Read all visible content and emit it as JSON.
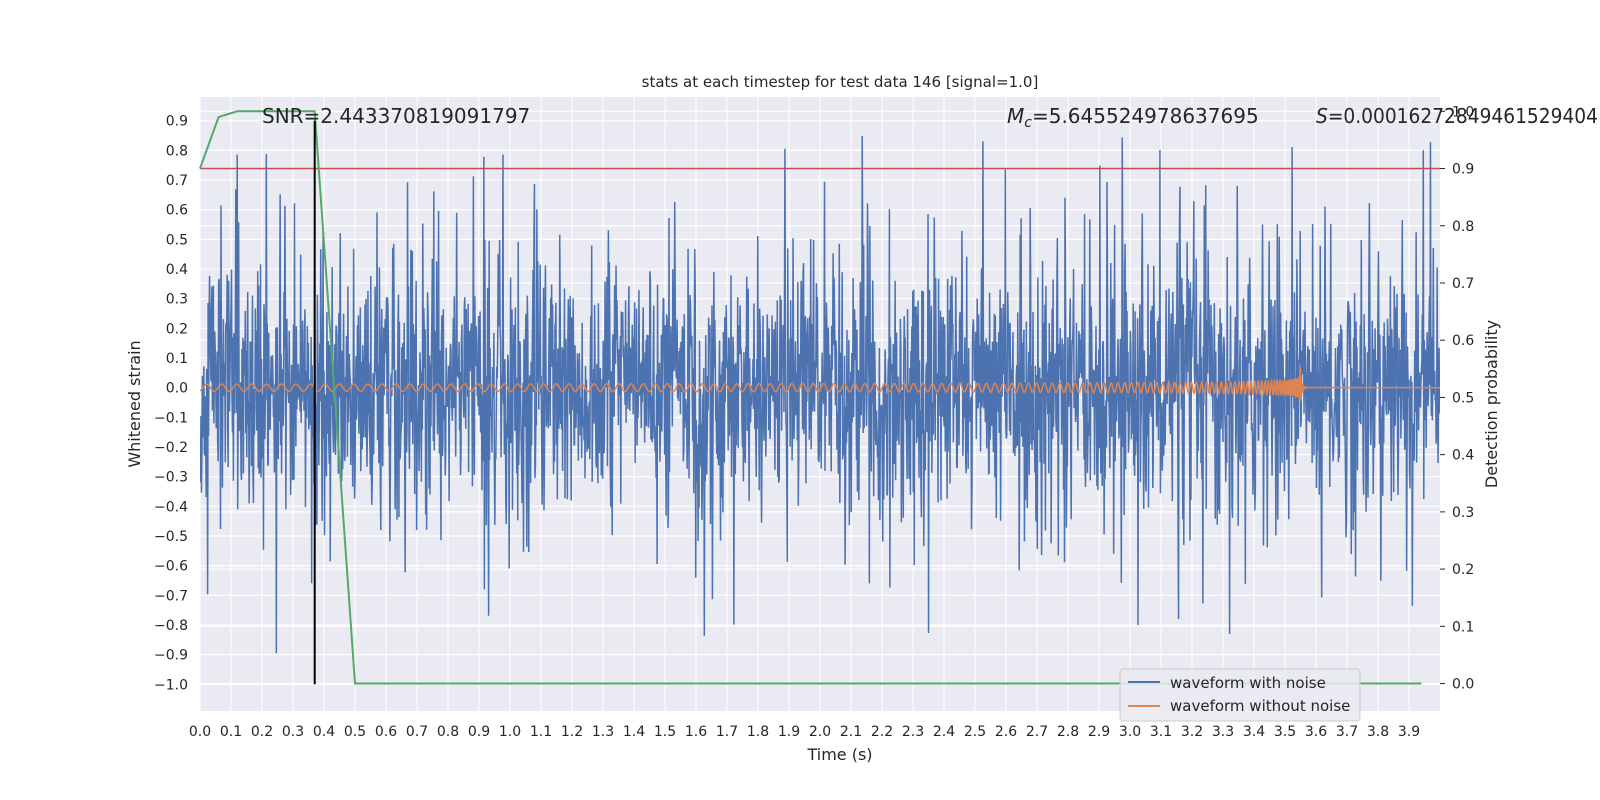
{
  "chart_data": {
    "type": "line",
    "title": "stats at each timestep for test data 146 [signal=1.0]",
    "xlabel": "Time (s)",
    "ylabel": "Whitened strain",
    "ylabel_right": "Detection probability",
    "xlim": [
      0.0,
      4.0
    ],
    "ylim": [
      -1.09,
      0.98
    ],
    "ylim_right": [
      -0.048,
      1.025
    ],
    "x_ticks": [
      "0.0",
      "0.1",
      "0.2",
      "0.3",
      "0.4",
      "0.5",
      "0.6",
      "0.7",
      "0.8",
      "0.9",
      "1.0",
      "1.1",
      "1.2",
      "1.3",
      "1.4",
      "1.5",
      "1.6",
      "1.7",
      "1.8",
      "1.9",
      "2.0",
      "2.1",
      "2.2",
      "2.3",
      "2.4",
      "2.5",
      "2.6",
      "2.7",
      "2.8",
      "2.9",
      "3.0",
      "3.1",
      "3.2",
      "3.3",
      "3.4",
      "3.5",
      "3.6",
      "3.7",
      "3.8",
      "3.9"
    ],
    "y_ticks": [
      "0.9",
      "0.8",
      "0.7",
      "0.6",
      "0.5",
      "0.4",
      "0.3",
      "0.2",
      "0.1",
      "0.0",
      "−0.1",
      "−0.2",
      "−0.3",
      "−0.4",
      "−0.5",
      "−0.6",
      "−0.7",
      "−0.8",
      "−0.9",
      "−1.0"
    ],
    "y_ticks_right": [
      "1.0",
      "0.9",
      "0.8",
      "0.7",
      "0.6",
      "0.5",
      "0.4",
      "0.3",
      "0.2",
      "0.1",
      "0.0"
    ],
    "annotations": {
      "snr": "SNR=2.443370819091797",
      "mc_symbol": "M",
      "mc_sub": "c",
      "mc_value": "=5.645524978637695",
      "s_symbol": "S",
      "s_value": "=0.00016272849461529404"
    },
    "legend": {
      "position": "lower-right",
      "entries": [
        "waveform with noise",
        "waveform without noise"
      ]
    },
    "threshold": {
      "axis": "right",
      "value": 0.9
    },
    "marker_line": {
      "x": 0.37,
      "y_from": -1.0,
      "y_to": 0.9
    },
    "series": [
      {
        "name": "waveform with noise",
        "axis": "left",
        "style": "noise",
        "x_range": [
          0.0,
          4.0
        ],
        "amplitude_rms": 0.22,
        "peak_max": 0.9,
        "peak_min": -0.98
      },
      {
        "name": "waveform without noise",
        "axis": "left",
        "style": "chirp",
        "x_range": [
          0.0,
          3.55
        ],
        "start_amplitude": 0.012,
        "end_amplitude": 0.07,
        "ringdown_end": 3.57
      },
      {
        "name": "detection probability",
        "axis": "right",
        "style": "line",
        "x": [
          0.0,
          0.06,
          0.12,
          0.2,
          0.3,
          0.37,
          0.5,
          1.0,
          2.0,
          3.0,
          3.94
        ],
        "y": [
          0.9,
          0.99,
          1.0,
          1.0,
          1.0,
          1.0,
          0.0,
          0.0,
          0.0,
          0.0,
          0.0
        ]
      }
    ],
    "colors": {
      "background": "#eaeaf2",
      "grid": "#ffffff",
      "noise": "#4c72b0",
      "clean": "#dd8452",
      "prob": "#55a868",
      "threshold": "#c44e52",
      "marker": "#000000"
    }
  }
}
